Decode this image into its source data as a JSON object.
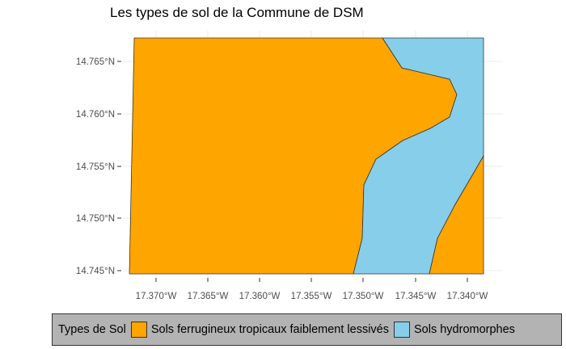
{
  "title": "Les types de sol de la Commune de DSM",
  "axes": {
    "x_ticks": [
      "17.370°W",
      "17.365°W",
      "17.360°W",
      "17.355°W",
      "17.350°W",
      "17.345°W",
      "17.340°W"
    ],
    "y_ticks": [
      "14.765°N",
      "14.760°N",
      "14.755°N",
      "14.750°N",
      "14.745°N"
    ],
    "x_range_lon": [
      -17.3725,
      -17.3385
    ],
    "y_range_lat": [
      14.7445,
      14.767
    ]
  },
  "colors": {
    "ferrugineux": "#ffa500",
    "hydromorphes": "#87ceeb",
    "outline": "#333333",
    "legend_bg": "#b3b3b3"
  },
  "legend": {
    "title": "Types de Sol",
    "items": [
      {
        "label": "Sols ferrugineux tropicaux faiblement lessivés",
        "color": "#ffa500"
      },
      {
        "label": "Sols hydromorphes",
        "color": "#87ceeb"
      }
    ]
  }
}
